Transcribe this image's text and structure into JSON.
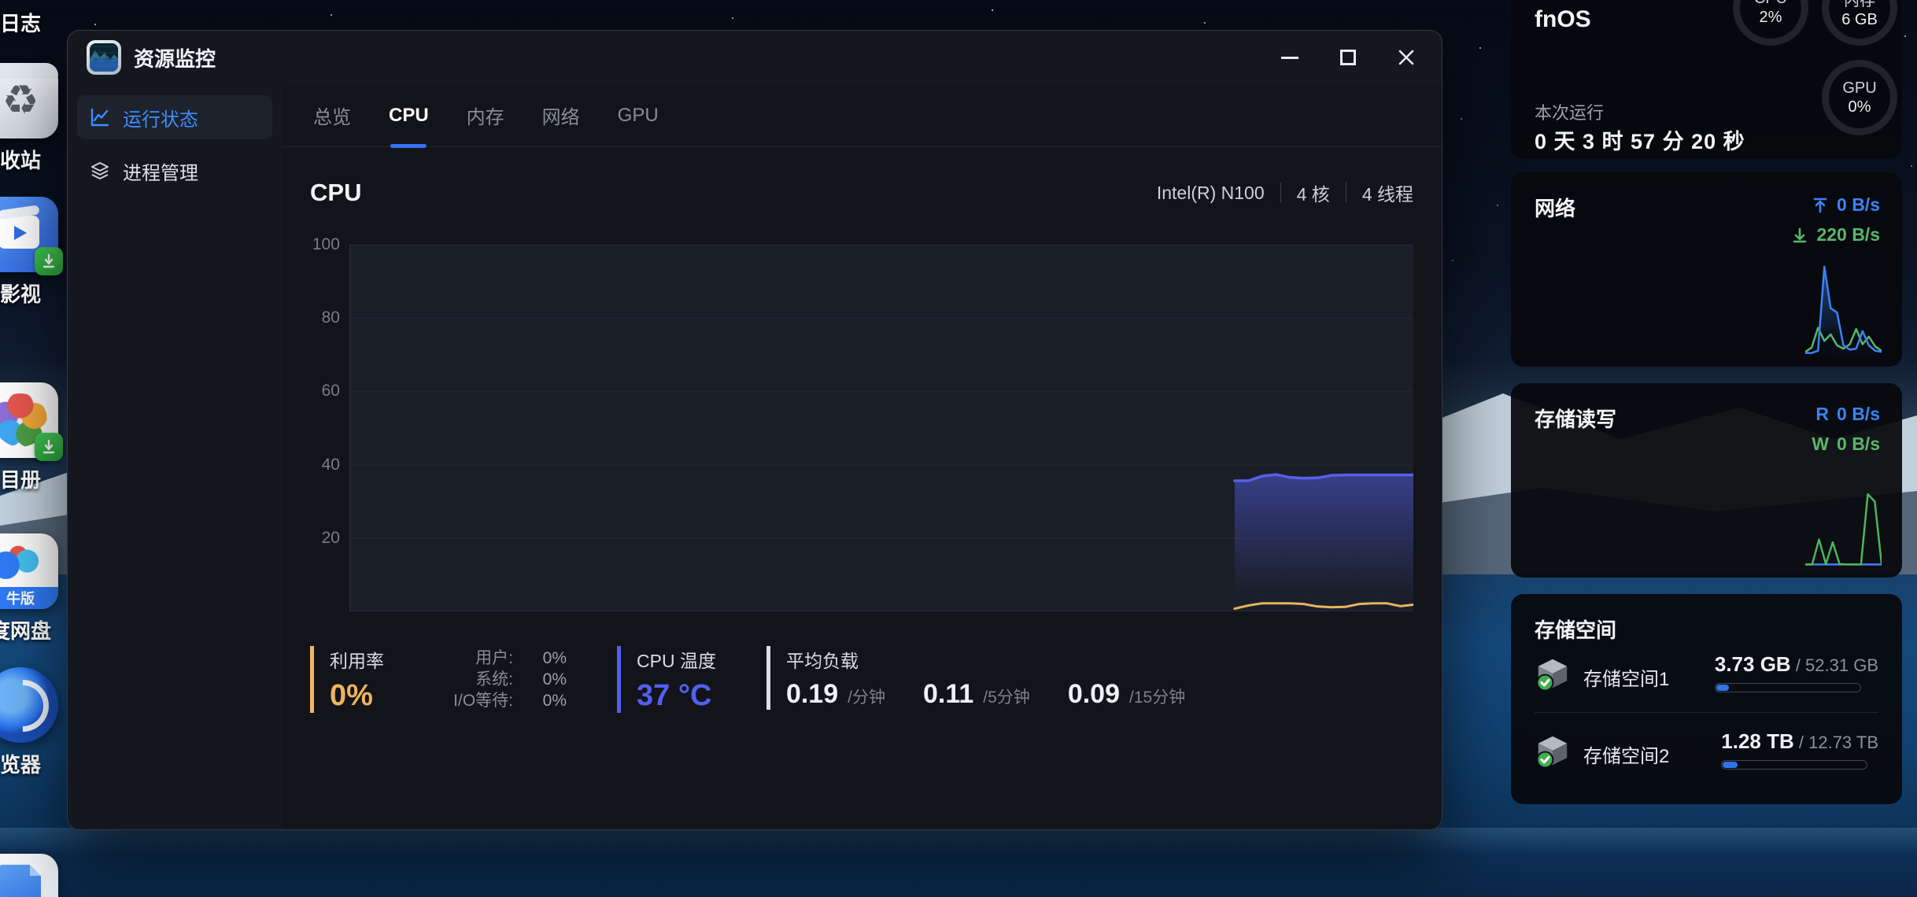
{
  "desktop": {
    "icons": [
      {
        "label": "日志",
        "icon": "log-icon"
      },
      {
        "label": "收站",
        "icon": "recycle-bin-icon"
      },
      {
        "label": "影视",
        "icon": "movies-icon"
      },
      {
        "label": "目册",
        "icon": "photos-icon"
      },
      {
        "label": "度网盘",
        "icon": "baidu-netdisk-icon",
        "ribbon": "牛版"
      },
      {
        "label": "览器",
        "icon": "browser-icon"
      },
      {
        "label": "",
        "icon": "document-icon"
      }
    ]
  },
  "window": {
    "title": "资源监控",
    "sidebar": {
      "items": [
        {
          "label": "运行状态",
          "active": true
        },
        {
          "label": "进程管理",
          "active": false
        }
      ]
    },
    "tabs": [
      {
        "label": "总览"
      },
      {
        "label": "CPU",
        "active": true
      },
      {
        "label": "内存"
      },
      {
        "label": "网络"
      },
      {
        "label": "GPU"
      }
    ],
    "cpu_page": {
      "heading": "CPU",
      "processor": "Intel(R) N100",
      "cores": "4 核",
      "threads": "4 线程",
      "stats": {
        "utilization_label": "利用率",
        "utilization_value": "0%",
        "user_label": "用户:",
        "user_value": "0%",
        "system_label": "系统:",
        "system_value": "0%",
        "iowait_label": "I/O等待:",
        "iowait_value": "0%",
        "temp_label": "CPU 温度",
        "temp_value": "37 °C",
        "load_label": "平均负载",
        "load_1": "0.19",
        "load_1_unit": "/分钟",
        "load_5": "0.11",
        "load_5_unit": "/5分钟",
        "load_15": "0.09",
        "load_15_unit": "/15分钟"
      }
    }
  },
  "panel": {
    "os_name": "fnOS",
    "gauges": [
      {
        "label": "CPU",
        "value": "2%"
      },
      {
        "label": "内存",
        "value": "6 GB"
      },
      {
        "label": "GPU",
        "value": "0%"
      }
    ],
    "uptime_label": "本次运行",
    "uptime_value": "0 天 3 时 57 分 20 秒",
    "network": {
      "title": "网络",
      "up_value": "0 B/s",
      "down_value": "220 B/s"
    },
    "disk_io": {
      "title": "存储读写",
      "read_label": "R",
      "read_value": "0 B/s",
      "write_label": "W",
      "write_value": "0 B/s"
    },
    "storage": {
      "title": "存储空间",
      "separator": " / ",
      "volumes": [
        {
          "name": "存储空间1",
          "used": "3.73 GB",
          "total": "52.31 GB",
          "percent": 7
        },
        {
          "name": "存储空间2",
          "used": "1.28 TB",
          "total": "12.73 TB",
          "percent": 10
        }
      ]
    }
  },
  "colors": {
    "accent_blue": "#3472f0",
    "sidebar_active": "#3f8cff",
    "utilization_orange": "#eeb45f",
    "temperature_blue": "#5260f0",
    "upload_blue": "#3b82f6",
    "download_green": "#58b868",
    "progress_fill": "#3273ea"
  },
  "chart_data": [
    {
      "type": "area",
      "title": "CPU",
      "ylim": [
        0,
        100
      ],
      "yticks": [
        100,
        80,
        60,
        40,
        20
      ],
      "grid": true,
      "legend_position": "none",
      "note": "history just started; data occupies rightmost ~17% of plot",
      "series": [
        {
          "name": "CPU 温度",
          "color": "#5560e8",
          "width": 3.5,
          "fill": true,
          "x": [
            0.832,
            0.845,
            0.858,
            0.871,
            0.884,
            0.897,
            0.91,
            0.923,
            0.936,
            0.949,
            0.962,
            0.975,
            0.988,
            1.0
          ],
          "values": [
            35.5,
            35.5,
            36.8,
            37.2,
            36.4,
            36.2,
            36.3,
            37.0,
            37.1,
            37.1,
            37.1,
            37.1,
            37.1,
            37.1
          ]
        },
        {
          "name": "利用率",
          "color": "#e9b45b",
          "width": 3,
          "fill": false,
          "x": [
            0.832,
            0.845,
            0.858,
            0.871,
            0.884,
            0.897,
            0.91,
            0.923,
            0.936,
            0.949,
            0.962,
            0.975,
            0.988,
            1.0
          ],
          "values": [
            0.3,
            1.2,
            1.8,
            1.8,
            1.8,
            1.6,
            0.9,
            0.7,
            0.8,
            1.6,
            1.8,
            1.8,
            1.0,
            1.4
          ]
        }
      ]
    },
    {
      "type": "line",
      "title": "网络",
      "ylim": [
        0,
        85
      ],
      "grid": false,
      "series": [
        {
          "name": "下载",
          "color": "#58b868",
          "width": 2.5,
          "fill": false,
          "x": [
            0,
            0.083,
            0.167,
            0.25,
            0.333,
            0.417,
            0.5,
            0.583,
            0.667,
            0.75,
            0.833,
            0.917,
            1.0
          ],
          "values": [
            2,
            6,
            24,
            12,
            18,
            8,
            5,
            9,
            23,
            9,
            16,
            7,
            3
          ]
        },
        {
          "name": "上传",
          "color": "#3b82f6",
          "width": 2.5,
          "fill": true,
          "x": [
            0,
            0.083,
            0.167,
            0.25,
            0.333,
            0.417,
            0.5,
            0.583,
            0.667,
            0.75,
            0.833,
            0.917,
            1.0
          ],
          "values": [
            1,
            1,
            3,
            80,
            42,
            38,
            8,
            4,
            5,
            21,
            8,
            3,
            2
          ]
        }
      ]
    },
    {
      "type": "line",
      "title": "存储读写",
      "ylim": [
        0,
        85
      ],
      "grid": false,
      "series": [
        {
          "name": "读取",
          "color": "#3b82f6",
          "width": 2.5,
          "fill": false,
          "x": [
            0,
            0.09,
            0.18,
            0.27,
            0.36,
            0.45,
            0.55,
            0.64,
            0.73,
            0.82,
            0.91,
            1.0
          ],
          "values": [
            0.5,
            0.5,
            0.5,
            0.5,
            0.5,
            0.5,
            0.5,
            0.5,
            0.5,
            0.5,
            0.5,
            0.5
          ]
        },
        {
          "name": "写入",
          "color": "#4cb65a",
          "width": 2.5,
          "fill": false,
          "x": [
            0,
            0.09,
            0.18,
            0.27,
            0.36,
            0.45,
            0.55,
            0.64,
            0.73,
            0.82,
            0.91,
            1.0
          ],
          "values": [
            0.5,
            0.5,
            28,
            1,
            25,
            1,
            0.5,
            0.5,
            0.5,
            78,
            70,
            1
          ]
        }
      ]
    }
  ]
}
